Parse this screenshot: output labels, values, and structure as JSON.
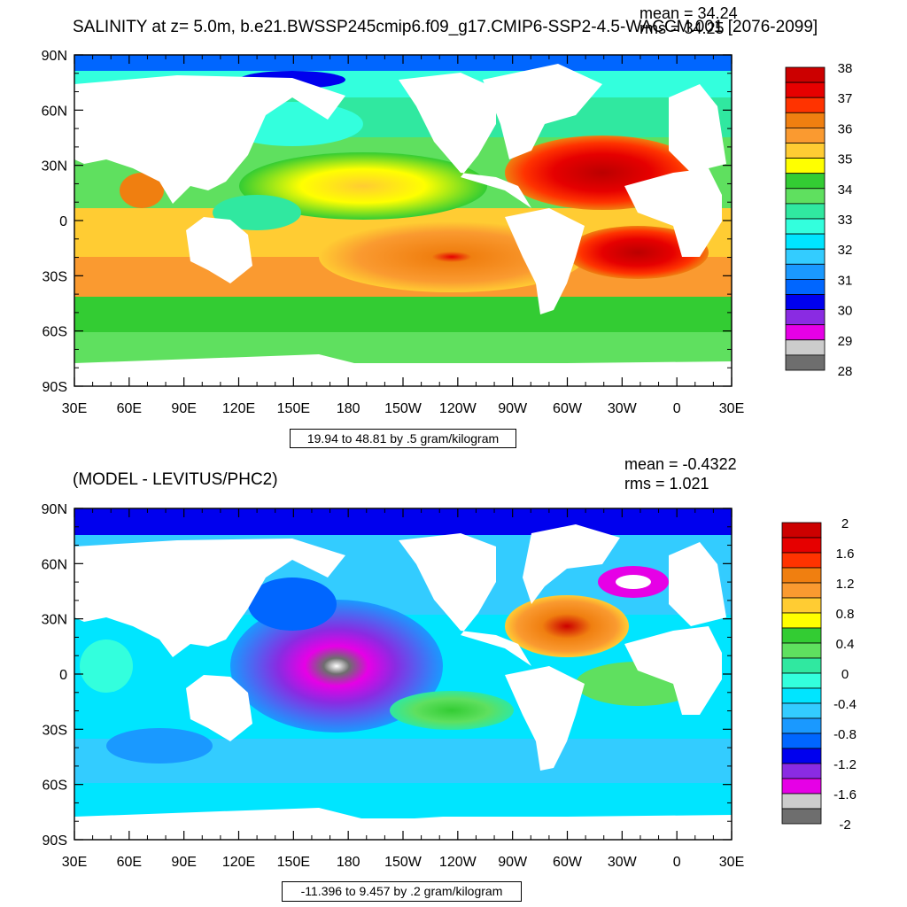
{
  "panels": [
    {
      "title": "SALINITY at z=   5.0m, b.e21.BWSSP245cmip6.f09_g17.CMIP6-SSP2-4.5-WACCM.001 [2076-2099]",
      "stats": {
        "mean": "mean = 34.24",
        "rms": "rms = 34.25"
      },
      "range_box": "19.94 to 48.81 by .5 gram/kilogram"
    },
    {
      "title": "(MODEL - LEVITUS/PHC2)",
      "stats": {
        "mean": "mean = -0.4322",
        "rms": "rms = 1.021"
      },
      "range_box": "-11.396 to 9.457 by .2 gram/kilogram"
    }
  ],
  "chart_data": [
    {
      "type": "heatmap",
      "title": "SALINITY at z=   5.0m, b.e21.BWSSP245cmip6.f09_g17.CMIP6-SSP2-4.5-WACCM.001 [2076-2099]",
      "units": "gram/kilogram",
      "x_ticks": [
        "30E",
        "60E",
        "90E",
        "120E",
        "150E",
        "180",
        "150W",
        "120W",
        "90W",
        "60W",
        "30W",
        "0",
        "30E"
      ],
      "y_ticks": [
        "90N",
        "60N",
        "30N",
        "0",
        "30S",
        "60S",
        "90S"
      ],
      "xlim": [
        30,
        390
      ],
      "ylim": [
        -90,
        90
      ],
      "grid": false,
      "legend": "right",
      "colorbar": {
        "labels": [
          "38",
          "37",
          "36",
          "35",
          "34",
          "33",
          "32",
          "31",
          "30",
          "29",
          "28"
        ],
        "colors": [
          "#cc0000",
          "#e60000",
          "#ff3300",
          "#f07f10",
          "#fa9a30",
          "#ffcc33",
          "#ffff00",
          "#33cc33",
          "#5fe05f",
          "#30e8a0",
          "#33ffdd",
          "#00e5ff",
          "#33ccff",
          "#1a99ff",
          "#0066ff",
          "#0000ee",
          "#8a2be2",
          "#e600e6",
          "#cccccc",
          "#6e6e6e"
        ]
      },
      "mean": 34.24,
      "rms": 34.25,
      "contour_min": 19.94,
      "contour_max": 48.81,
      "contour_interval": 0.5
    },
    {
      "type": "heatmap",
      "title": "(MODEL - LEVITUS/PHC2)",
      "units": "gram/kilogram",
      "x_ticks": [
        "30E",
        "60E",
        "90E",
        "120E",
        "150E",
        "180",
        "150W",
        "120W",
        "90W",
        "60W",
        "30W",
        "0",
        "30E"
      ],
      "y_ticks": [
        "90N",
        "60N",
        "30N",
        "0",
        "30S",
        "60S",
        "90S"
      ],
      "xlim": [
        30,
        390
      ],
      "ylim": [
        -90,
        90
      ],
      "grid": false,
      "legend": "right",
      "colorbar": {
        "labels": [
          "2",
          "1.6",
          "1.2",
          "0.8",
          "0.4",
          "0",
          "-0.4",
          "-0.8",
          "-1.2",
          "-1.6",
          "-2"
        ],
        "colors": [
          "#cc0000",
          "#e60000",
          "#ff3300",
          "#f07f10",
          "#fa9a30",
          "#ffcc33",
          "#ffff00",
          "#33cc33",
          "#5fe05f",
          "#30e8a0",
          "#33ffdd",
          "#00e5ff",
          "#33ccff",
          "#1a99ff",
          "#0066ff",
          "#0000ee",
          "#8a2be2",
          "#e600e6",
          "#cccccc",
          "#6e6e6e"
        ]
      },
      "mean": -0.4322,
      "rms": 1.021,
      "contour_min": -11.396,
      "contour_max": 9.457,
      "contour_interval": 0.2
    }
  ]
}
